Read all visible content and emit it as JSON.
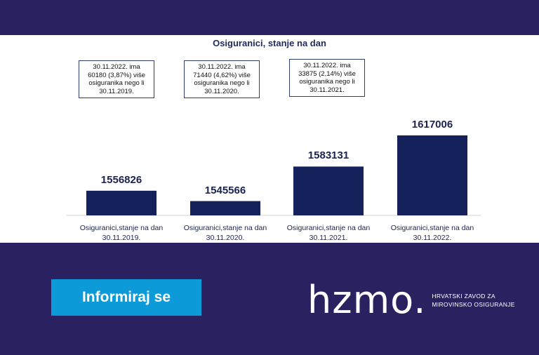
{
  "chart_data": {
    "type": "bar",
    "title": "Osiguranici, stanje na dan",
    "categories": [
      "Osiguranici,stanje na dan\n30.11.2019.",
      "Osiguranici,stanje na dan\n30.11.2020.",
      "Osiguranici,stanje na dan\n30.11.2021.",
      "Osiguranici,stanje na dan\n30.11.2022."
    ],
    "values": [
      1556826,
      1545566,
      1583131,
      1617006
    ],
    "value_labels": [
      "1556826",
      "1545566",
      "1583131",
      "1617006"
    ],
    "annotations": [
      "30.11.2022. ima\n60180 (3,87%) više\nosiguranika nego li\n30.11.2019.",
      "30.11.2022. ima\n71440  (4,62%) više\nosiguranika nego li\n30.11.2020.",
      "30.11.2022. ima\n33875 (2,14%) više\nosiguranika nego li\n30.11.2021."
    ],
    "bar_color": "#14215a",
    "grid": false
  },
  "cta": {
    "label": "Informiraj se",
    "color": "#0d9ad8"
  },
  "logo": {
    "wordmark": "hzmo.",
    "line1": "HRVATSKI ZAVOD ZA",
    "line2": "MIROVINSKO OSIGURANJE"
  },
  "colors": {
    "background": "#2a2260",
    "panel": "#ffffff"
  }
}
